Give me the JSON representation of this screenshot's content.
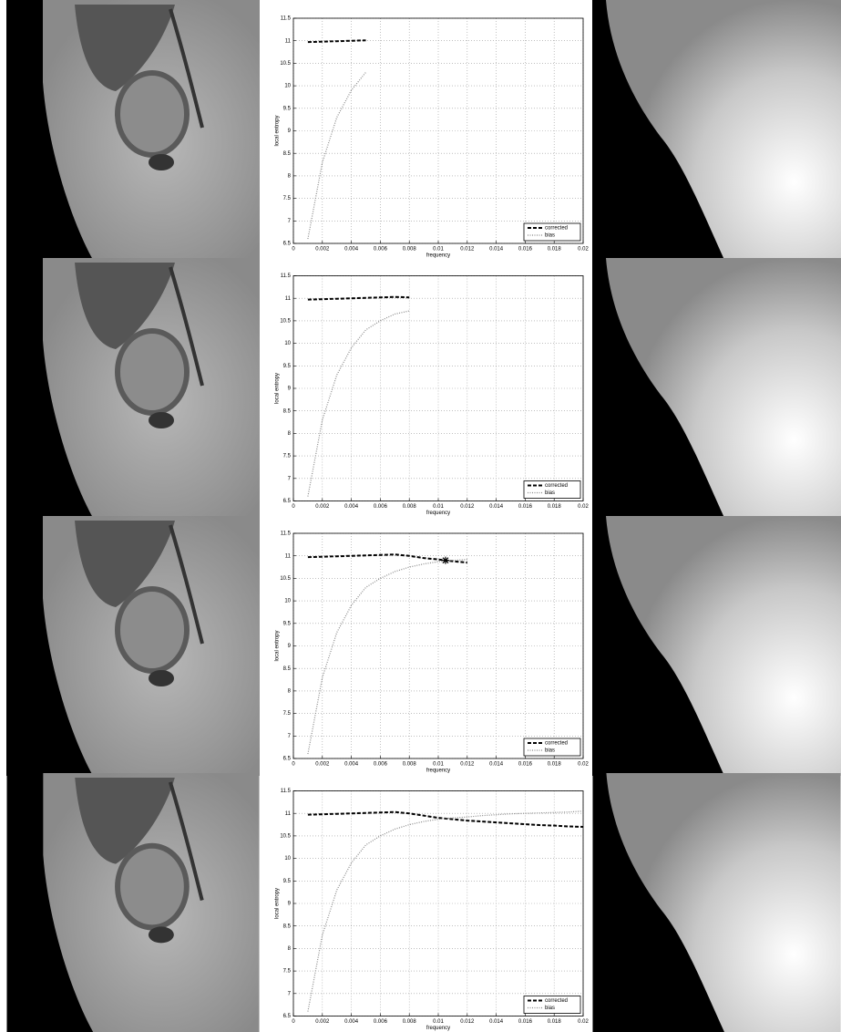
{
  "chart_data": [
    {
      "type": "line",
      "xlabel": "frequency",
      "ylabel": "local entropy",
      "x": [
        0.001,
        0.002,
        0.003,
        0.004,
        0.005
      ],
      "series": [
        {
          "name": "corrected",
          "color": "#000000",
          "style": "dashed",
          "values": [
            10.97,
            10.98,
            10.99,
            11.0,
            11.01
          ]
        },
        {
          "name": "bias",
          "color": "#888888",
          "style": "dotted",
          "values": [
            6.6,
            8.3,
            9.3,
            9.9,
            10.3
          ]
        }
      ],
      "xlim": [
        0,
        0.02
      ],
      "xticks": [
        0,
        0.002,
        0.004,
        0.006,
        0.008,
        0.01,
        0.012,
        0.014,
        0.016,
        0.018,
        0.02
      ],
      "ylim": [
        6.5,
        11.5
      ],
      "yticks": [
        6.5,
        7,
        7.5,
        8,
        8.5,
        9,
        9.5,
        10,
        10.5,
        11,
        11.5
      ],
      "grid": true,
      "legend": "lower right"
    },
    {
      "type": "line",
      "xlabel": "frequency",
      "ylabel": "local entropy",
      "x": [
        0.001,
        0.002,
        0.003,
        0.004,
        0.005,
        0.006,
        0.007,
        0.008
      ],
      "series": [
        {
          "name": "corrected",
          "color": "#000000",
          "style": "dashed",
          "values": [
            10.97,
            10.98,
            10.99,
            11.0,
            11.01,
            11.02,
            11.03,
            11.02
          ]
        },
        {
          "name": "bias",
          "color": "#888888",
          "style": "dotted",
          "values": [
            6.6,
            8.3,
            9.3,
            9.9,
            10.3,
            10.5,
            10.65,
            10.72
          ]
        }
      ],
      "xlim": [
        0,
        0.02
      ],
      "xticks": [
        0,
        0.002,
        0.004,
        0.006,
        0.008,
        0.01,
        0.012,
        0.014,
        0.016,
        0.018,
        0.02
      ],
      "ylim": [
        6.5,
        11.5
      ],
      "yticks": [
        6.5,
        7,
        7.5,
        8,
        8.5,
        9,
        9.5,
        10,
        10.5,
        11,
        11.5
      ],
      "grid": true,
      "legend": "lower right"
    },
    {
      "type": "line",
      "xlabel": "frequency",
      "ylabel": "local entropy",
      "x": [
        0.001,
        0.002,
        0.003,
        0.004,
        0.005,
        0.006,
        0.007,
        0.008,
        0.009,
        0.01,
        0.011,
        0.012
      ],
      "series": [
        {
          "name": "corrected",
          "color": "#000000",
          "style": "dashed",
          "values": [
            10.97,
            10.98,
            10.99,
            11.0,
            11.01,
            11.02,
            11.03,
            11.0,
            10.95,
            10.92,
            10.88,
            10.85
          ]
        },
        {
          "name": "bias",
          "color": "#888888",
          "style": "dotted",
          "values": [
            6.6,
            8.3,
            9.3,
            9.9,
            10.3,
            10.5,
            10.65,
            10.75,
            10.82,
            10.87,
            10.9,
            10.92
          ]
        }
      ],
      "marker": {
        "x": 0.0105,
        "y": 10.9
      },
      "xlim": [
        0,
        0.02
      ],
      "xticks": [
        0,
        0.002,
        0.004,
        0.006,
        0.008,
        0.01,
        0.012,
        0.014,
        0.016,
        0.018,
        0.02
      ],
      "ylim": [
        6.5,
        11.5
      ],
      "yticks": [
        6.5,
        7,
        7.5,
        8,
        8.5,
        9,
        9.5,
        10,
        10.5,
        11,
        11.5
      ],
      "grid": true,
      "legend": "lower right"
    },
    {
      "type": "line",
      "xlabel": "frequency",
      "ylabel": "local entropy",
      "x": [
        0.001,
        0.002,
        0.003,
        0.004,
        0.005,
        0.006,
        0.007,
        0.008,
        0.009,
        0.01,
        0.011,
        0.012,
        0.013,
        0.014,
        0.015,
        0.016,
        0.017,
        0.018,
        0.019,
        0.02
      ],
      "series": [
        {
          "name": "corrected",
          "color": "#000000",
          "style": "dashed",
          "values": [
            10.97,
            10.98,
            10.99,
            11.0,
            11.01,
            11.02,
            11.03,
            11.0,
            10.95,
            10.9,
            10.87,
            10.84,
            10.82,
            10.8,
            10.78,
            10.76,
            10.74,
            10.73,
            10.71,
            10.7
          ]
        },
        {
          "name": "bias",
          "color": "#888888",
          "style": "dotted",
          "values": [
            6.6,
            8.3,
            9.3,
            9.9,
            10.3,
            10.5,
            10.65,
            10.75,
            10.82,
            10.87,
            10.9,
            10.92,
            10.95,
            10.97,
            10.99,
            11.0,
            11.01,
            11.02,
            11.03,
            11.05
          ]
        }
      ],
      "xlim": [
        0,
        0.02
      ],
      "xticks": [
        0,
        0.002,
        0.004,
        0.006,
        0.008,
        0.01,
        0.012,
        0.014,
        0.016,
        0.018,
        0.02
      ],
      "ylim": [
        6.5,
        11.5
      ],
      "yticks": [
        6.5,
        7,
        7.5,
        8,
        8.5,
        9,
        9.5,
        10,
        10.5,
        11,
        11.5
      ],
      "grid": true,
      "legend": "lower right"
    }
  ]
}
